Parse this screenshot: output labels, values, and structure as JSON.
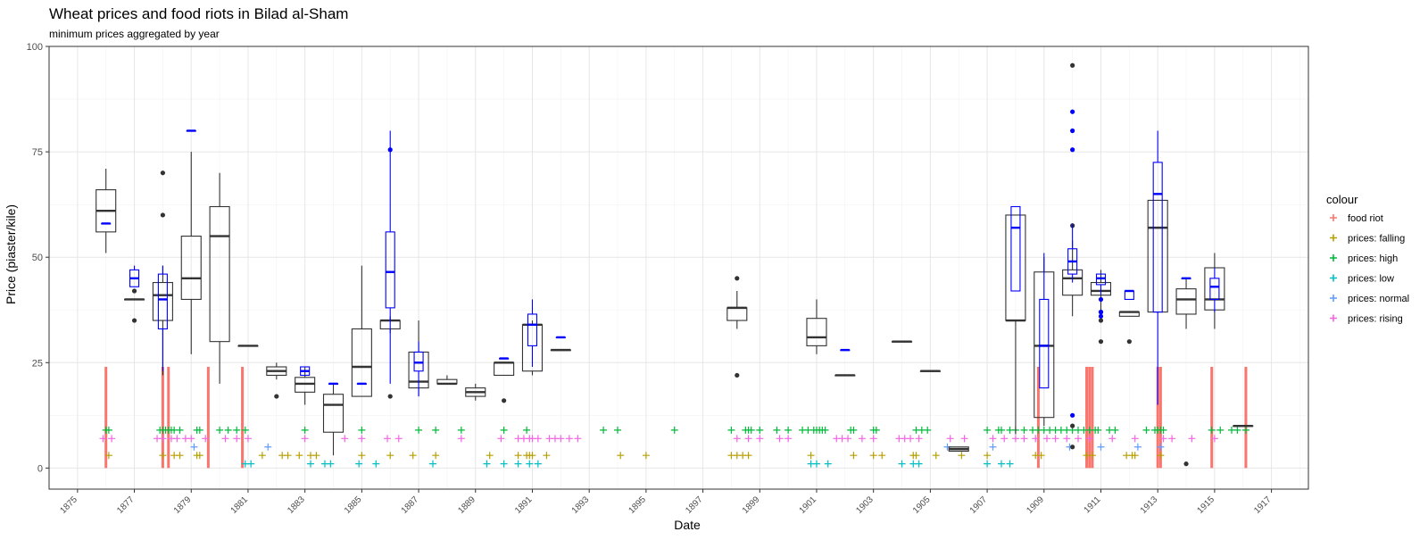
{
  "chart_data": {
    "type": "boxplot",
    "title": "Wheat prices and food riots in Bilad al-Sham",
    "subtitle": "minimum prices aggregated by year",
    "xlabel": "Date",
    "ylabel": "Price (piaster/kile)",
    "xlim": [
      1874,
      1918.3
    ],
    "ylim": [
      -5,
      100
    ],
    "x_ticks": [
      "1875",
      "1877",
      "1879",
      "1881",
      "1883",
      "1885",
      "1887",
      "1889",
      "1891",
      "1893",
      "1895",
      "1897",
      "1899",
      "1901",
      "1903",
      "1905",
      "1907",
      "1909",
      "1911",
      "1913",
      "1915",
      "1917"
    ],
    "y_ticks": [
      0,
      25,
      50,
      75,
      100
    ],
    "grid": true,
    "legend": {
      "title": "colour",
      "placement": "right",
      "entries": [
        {
          "name": "food riot",
          "color": "#F8766D"
        },
        {
          "name": "prices: falling",
          "color": "#B79F00"
        },
        {
          "name": "prices: high",
          "color": "#00BA38"
        },
        {
          "name": "prices: low",
          "color": "#00BFC4"
        },
        {
          "name": "prices: normal",
          "color": "#619CFF"
        },
        {
          "name": "prices: rising",
          "color": "#F564E3"
        }
      ]
    },
    "box_colors": {
      "black": "#333333",
      "blue": "#0000FF"
    },
    "boxes_black": [
      {
        "x": 1876.0,
        "lo": 51,
        "q1": 56,
        "med": 61,
        "q3": 66,
        "hi": 71
      },
      {
        "x": 1877.0,
        "lo": 40,
        "q1": 40,
        "med": 40,
        "q3": 40,
        "hi": 40,
        "out": [
          42,
          35
        ]
      },
      {
        "x": 1878.0,
        "lo": 22,
        "q1": 35,
        "med": 41,
        "q3": 44,
        "hi": 48,
        "out": [
          70,
          60
        ]
      },
      {
        "x": 1879.0,
        "lo": 27,
        "q1": 40,
        "med": 45,
        "q3": 55,
        "hi": 75
      },
      {
        "x": 1880.0,
        "lo": 20,
        "q1": 30,
        "med": 55,
        "q3": 62,
        "hi": 70
      },
      {
        "x": 1881.0,
        "lo": 29,
        "q1": 29,
        "med": 29,
        "q3": 29,
        "hi": 29
      },
      {
        "x": 1882.0,
        "lo": 21,
        "q1": 22,
        "med": 23,
        "q3": 24,
        "hi": 25,
        "out": [
          17
        ]
      },
      {
        "x": 1883.0,
        "lo": 15,
        "q1": 18,
        "med": 20,
        "q3": 21.5,
        "hi": 24
      },
      {
        "x": 1884.0,
        "lo": 3,
        "q1": 8.5,
        "med": 15,
        "q3": 17.5,
        "hi": 20
      },
      {
        "x": 1885.0,
        "lo": 17,
        "q1": 17,
        "med": 24,
        "q3": 33,
        "hi": 48
      },
      {
        "x": 1886.0,
        "lo": 32,
        "q1": 33,
        "med": 35,
        "q3": 35,
        "hi": 36,
        "out": [
          17
        ]
      },
      {
        "x": 1887.0,
        "lo": 17,
        "q1": 19,
        "med": 20.5,
        "q3": 27.5,
        "hi": 35
      },
      {
        "x": 1888.0,
        "lo": 20,
        "q1": 20,
        "med": 20,
        "q3": 21,
        "hi": 22
      },
      {
        "x": 1889.0,
        "lo": 16,
        "q1": 17,
        "med": 18,
        "q3": 19,
        "hi": 20
      },
      {
        "x": 1890.0,
        "lo": 22,
        "q1": 22,
        "med": 25,
        "q3": 25,
        "hi": 25,
        "out": [
          16
        ]
      },
      {
        "x": 1891.0,
        "lo": 22,
        "q1": 23,
        "med": 34,
        "q3": 34,
        "hi": 35
      },
      {
        "x": 1892.0,
        "lo": 28,
        "q1": 28,
        "med": 28,
        "q3": 28,
        "hi": 28
      },
      {
        "x": 1898.2,
        "lo": 33,
        "q1": 35,
        "med": 38,
        "q3": 38,
        "hi": 42,
        "out": [
          45,
          22
        ]
      },
      {
        "x": 1901.0,
        "lo": 27,
        "q1": 29,
        "med": 31,
        "q3": 35.5,
        "hi": 40
      },
      {
        "x": 1902.0,
        "lo": 22,
        "q1": 22,
        "med": 22,
        "q3": 22,
        "hi": 22
      },
      {
        "x": 1904.0,
        "lo": 30,
        "q1": 30,
        "med": 30,
        "q3": 30,
        "hi": 30
      },
      {
        "x": 1905.0,
        "lo": 23,
        "q1": 23,
        "med": 23,
        "q3": 23,
        "hi": 23
      },
      {
        "x": 1906.0,
        "lo": 4,
        "q1": 4,
        "med": 4.5,
        "q3": 5,
        "hi": 5
      },
      {
        "x": 1908.0,
        "lo": 8,
        "q1": 35,
        "med": 35,
        "q3": 60,
        "hi": 60
      },
      {
        "x": 1909.0,
        "lo": 10,
        "q1": 12,
        "med": 29,
        "q3": 46.5,
        "hi": 50
      },
      {
        "x": 1910.0,
        "lo": 36,
        "q1": 41,
        "med": 45,
        "q3": 47,
        "hi": 54,
        "out": [
          95.5,
          57.5,
          10,
          5
        ]
      },
      {
        "x": 1911.0,
        "lo": 35,
        "q1": 41,
        "med": 42,
        "q3": 44,
        "hi": 47,
        "out": [
          37,
          35,
          30
        ]
      },
      {
        "x": 1912.0,
        "lo": 36,
        "q1": 36,
        "med": 37,
        "q3": 37,
        "hi": 37,
        "out": [
          30
        ]
      },
      {
        "x": 1913.0,
        "lo": 37,
        "q1": 37,
        "med": 57,
        "q3": 63.5,
        "hi": 63.5
      },
      {
        "x": 1914.0,
        "lo": 33,
        "q1": 36.5,
        "med": 40,
        "q3": 42.5,
        "hi": 45,
        "out": [
          1
        ]
      },
      {
        "x": 1915.0,
        "lo": 33,
        "q1": 37.5,
        "med": 40,
        "q3": 47.5,
        "hi": 51
      },
      {
        "x": 1916.0,
        "lo": 10,
        "q1": 10,
        "med": 10,
        "q3": 10,
        "hi": 10
      }
    ],
    "boxes_blue": [
      {
        "x": 1876.0,
        "lo": 58,
        "q1": 58,
        "med": 58,
        "q3": 58,
        "hi": 58
      },
      {
        "x": 1877.0,
        "lo": 43,
        "q1": 43,
        "med": 45,
        "q3": 47,
        "hi": 48
      },
      {
        "x": 1878.0,
        "lo": 23,
        "q1": 33,
        "med": 40,
        "q3": 46,
        "hi": 48
      },
      {
        "x": 1879.0,
        "lo": 80,
        "q1": 80,
        "med": 80,
        "q3": 80,
        "hi": 80
      },
      {
        "x": 1883.0,
        "lo": 22,
        "q1": 22,
        "med": 23,
        "q3": 24,
        "hi": 24
      },
      {
        "x": 1884.0,
        "lo": 20,
        "q1": 20,
        "med": 20,
        "q3": 20,
        "hi": 20
      },
      {
        "x": 1885.0,
        "lo": 20,
        "q1": 20,
        "med": 20,
        "q3": 20,
        "hi": 20
      },
      {
        "x": 1886.0,
        "lo": 20,
        "q1": 38,
        "med": 46.5,
        "q3": 56,
        "hi": 80,
        "out": [
          75.5
        ]
      },
      {
        "x": 1887.0,
        "lo": 17,
        "q1": 23,
        "med": 25,
        "q3": 27.5,
        "hi": 30
      },
      {
        "x": 1890.0,
        "lo": 26,
        "q1": 26,
        "med": 26,
        "q3": 26,
        "hi": 26
      },
      {
        "x": 1891.0,
        "lo": 24,
        "q1": 29,
        "med": 34,
        "q3": 36.5,
        "hi": 40
      },
      {
        "x": 1892.0,
        "lo": 31,
        "q1": 31,
        "med": 31,
        "q3": 31,
        "hi": 31
      },
      {
        "x": 1902.0,
        "lo": 28,
        "q1": 28,
        "med": 28,
        "q3": 28,
        "hi": 28
      },
      {
        "x": 1908.0,
        "lo": 42,
        "q1": 42,
        "med": 57,
        "q3": 62,
        "hi": 62
      },
      {
        "x": 1909.0,
        "lo": 19,
        "q1": 19,
        "med": 29,
        "q3": 40,
        "hi": 51
      },
      {
        "x": 1910.0,
        "lo": 44,
        "q1": 46,
        "med": 49,
        "q3": 52,
        "hi": 58,
        "out": [
          84.5,
          80,
          75.5,
          12.5
        ]
      },
      {
        "x": 1911.0,
        "lo": 41,
        "q1": 43.5,
        "med": 45,
        "q3": 46,
        "hi": 46,
        "out": [
          40,
          37,
          36
        ]
      },
      {
        "x": 1912.0,
        "lo": 40,
        "q1": 40,
        "med": 42,
        "q3": 42,
        "hi": 42
      },
      {
        "x": 1913.0,
        "lo": 15,
        "q1": 37,
        "med": 65,
        "q3": 72.5,
        "hi": 80
      },
      {
        "x": 1914.0,
        "lo": 45,
        "q1": 45,
        "med": 45,
        "q3": 45,
        "hi": 45
      },
      {
        "x": 1915.0,
        "lo": 37,
        "q1": 40,
        "med": 43,
        "q3": 45,
        "hi": 47.5
      }
    ],
    "food_riot_bars": [
      {
        "x": 1876.0,
        "y": 24
      },
      {
        "x": 1878.0,
        "y": 24
      },
      {
        "x": 1878.2,
        "y": 24
      },
      {
        "x": 1879.6,
        "y": 24
      },
      {
        "x": 1880.8,
        "y": 24
      },
      {
        "x": 1908.8,
        "y": 24
      },
      {
        "x": 1910.5,
        "y": 24
      },
      {
        "x": 1910.6,
        "y": 24
      },
      {
        "x": 1910.7,
        "y": 24
      },
      {
        "x": 1913.0,
        "y": 24
      },
      {
        "x": 1913.1,
        "y": 24
      },
      {
        "x": 1914.9,
        "y": 24
      },
      {
        "x": 1916.1,
        "y": 24
      }
    ],
    "event_markers": [
      {
        "series": "prices: high",
        "y": 9,
        "x": [
          1876.0,
          1876.1,
          1877.9,
          1878.0,
          1878.1,
          1878.2,
          1878.3,
          1878.4,
          1878.6,
          1879.2,
          1879.3,
          1880.0,
          1880.3,
          1880.6,
          1880.9,
          1883.0,
          1885.0,
          1887.0,
          1887.6,
          1888.5,
          1890.0,
          1890.8,
          1893.5,
          1894.0,
          1896.0,
          1898.0,
          1898.5,
          1898.6,
          1898.7,
          1899.0,
          1899.6,
          1900.0,
          1900.5,
          1900.7,
          1900.9,
          1901.0,
          1901.1,
          1901.2,
          1901.3,
          1902.2,
          1902.3,
          1903.0,
          1903.1,
          1904.5,
          1904.7,
          1904.9,
          1907.0,
          1907.4,
          1907.5,
          1907.8,
          1908.0,
          1908.3,
          1908.6,
          1908.8,
          1909.0,
          1909.2,
          1909.4,
          1909.6,
          1909.8,
          1910.0,
          1910.2,
          1910.4,
          1910.6,
          1910.8,
          1910.9,
          1911.3,
          1911.5,
          1912.6,
          1912.9,
          1913.0,
          1913.1,
          1913.2,
          1914.9,
          1915.2,
          1915.6,
          1915.8,
          1916.1
        ]
      },
      {
        "series": "prices: rising",
        "y": 7,
        "x": [
          1875.9,
          1876.2,
          1877.8,
          1878.0,
          1878.3,
          1878.5,
          1878.8,
          1879.0,
          1879.5,
          1880.2,
          1880.6,
          1881.0,
          1883.0,
          1884.4,
          1885.0,
          1885.9,
          1886.3,
          1888.5,
          1889.9,
          1890.5,
          1890.7,
          1890.9,
          1891.0,
          1891.2,
          1891.6,
          1891.8,
          1892.0,
          1892.3,
          1892.6,
          1898.2,
          1898.6,
          1899.0,
          1899.7,
          1900.0,
          1901.7,
          1901.9,
          1902.1,
          1902.6,
          1903.0,
          1903.9,
          1904.1,
          1904.3,
          1904.6,
          1905.7,
          1906.2,
          1907.2,
          1907.6,
          1908.0,
          1908.3,
          1908.7,
          1909.1,
          1909.4,
          1909.8,
          1910.2,
          1910.6,
          1911.4,
          1912.2,
          1913.2,
          1913.5,
          1914.2,
          1915.0
        ]
      },
      {
        "series": "prices: falling",
        "y": 3,
        "x": [
          1876.1,
          1878.0,
          1878.4,
          1878.6,
          1879.2,
          1879.3,
          1881.5,
          1882.2,
          1882.4,
          1882.8,
          1883.2,
          1883.4,
          1885.0,
          1886.0,
          1886.8,
          1887.6,
          1889.5,
          1890.5,
          1890.8,
          1890.9,
          1891.0,
          1891.5,
          1894.1,
          1895.0,
          1898.0,
          1898.2,
          1898.4,
          1898.6,
          1900.8,
          1902.3,
          1903.0,
          1903.3,
          1904.4,
          1904.5,
          1905.2,
          1906.1,
          1907.0,
          1908.7,
          1908.9,
          1910.5,
          1910.7,
          1911.9,
          1912.1,
          1912.2,
          1913.1
        ]
      },
      {
        "series": "prices: low",
        "y": 1,
        "x": [
          1880.9,
          1881.1,
          1883.2,
          1883.7,
          1883.9,
          1884.9,
          1885.5,
          1887.5,
          1889.4,
          1890.0,
          1890.5,
          1890.9,
          1891.2,
          1900.8,
          1901.0,
          1901.4,
          1904.0,
          1904.4,
          1904.6,
          1907.0,
          1907.5,
          1907.8
        ]
      },
      {
        "series": "prices: normal",
        "y": 5,
        "x": [
          1879.1,
          1881.7,
          1905.6,
          1907.2,
          1909.9,
          1911.0,
          1912.3,
          1913.1
        ]
      }
    ]
  }
}
